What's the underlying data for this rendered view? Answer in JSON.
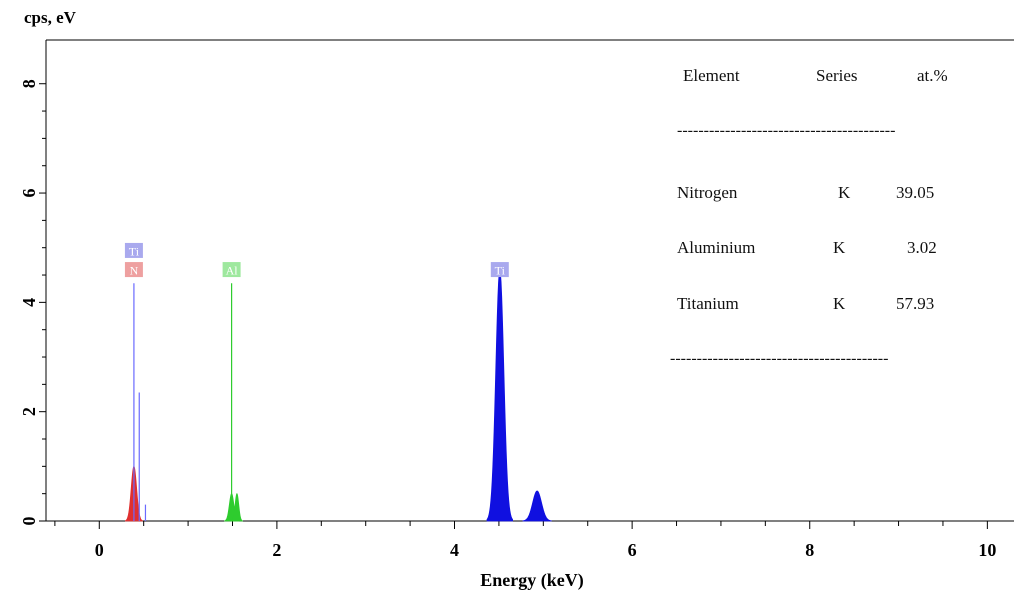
{
  "chart_data": {
    "type": "area",
    "ylabel": "cps, eV",
    "xlabel": "Energy (keV)",
    "xlim": [
      -0.6,
      10.3
    ],
    "ylim": [
      0,
      8.8
    ],
    "x_ticks": [
      "0",
      "2",
      "4",
      "6",
      "8",
      "10"
    ],
    "y_ticks": [
      "0",
      "2",
      "4",
      "6",
      "8"
    ],
    "series": [
      {
        "name": "N",
        "color": "#e03030",
        "peaks": [
          {
            "x": 0.39,
            "height": 1.0,
            "width": 0.03
          }
        ]
      },
      {
        "name": "Al",
        "color": "#2ecc2e",
        "peaks": [
          {
            "x": 1.49,
            "height": 0.5,
            "width": 0.025
          },
          {
            "x": 1.55,
            "height": 0.5,
            "width": 0.02
          }
        ]
      },
      {
        "name": "Ti",
        "color": "#1010e0",
        "peaks": [
          {
            "x": 4.51,
            "height": 4.6,
            "width": 0.045
          },
          {
            "x": 4.93,
            "height": 0.55,
            "width": 0.05
          }
        ]
      }
    ],
    "thin_lines": [
      {
        "element": "Ti",
        "x": 0.39,
        "height": 4.35,
        "color": "#6a6aff"
      },
      {
        "element": "Ti",
        "x": 0.45,
        "height": 2.35,
        "color": "#6a6aff"
      },
      {
        "element": "Ti",
        "x": 0.52,
        "height": 0.3,
        "color": "#6a6aff"
      },
      {
        "element": "Al",
        "x": 1.49,
        "height": 4.35,
        "color": "#2ecc2e"
      }
    ],
    "peak_labels": [
      {
        "text": "Ti",
        "x": 0.39,
        "y": 4.95,
        "bg": "#a9a9ee"
      },
      {
        "text": "N",
        "x": 0.39,
        "y": 4.6,
        "bg": "#eea0a0"
      },
      {
        "text": "Al",
        "x": 1.49,
        "y": 4.6,
        "bg": "#9ee89e"
      },
      {
        "text": "Ti",
        "x": 4.51,
        "y": 4.6,
        "bg": "#a9a9ee"
      }
    ]
  },
  "table": {
    "headers": [
      "Element",
      "Series",
      "at.%"
    ],
    "rows": [
      {
        "element": "Nitrogen",
        "series": "K",
        "at": "39.05"
      },
      {
        "element": "Aluminium",
        "series": "K",
        "at": "3.02"
      },
      {
        "element": "Titanium",
        "series": "K",
        "at": "57.93"
      }
    ],
    "rule": "-----------------------------------------"
  }
}
